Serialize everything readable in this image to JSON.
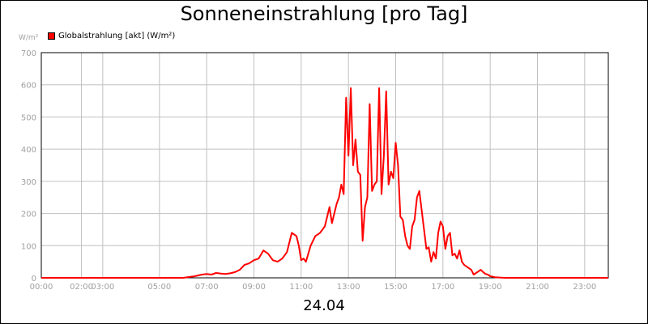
{
  "chart_data": {
    "type": "line",
    "title": "Sonneneinstrahlung [pro Tag]",
    "ylabel": "W/m²",
    "xlabel": "",
    "x_group_label": "24.04",
    "ylim": [
      0,
      700
    ],
    "xlim": [
      0,
      24
    ],
    "y_ticks": [
      0,
      100,
      200,
      300,
      400,
      500,
      600,
      700
    ],
    "x_ticks": [
      {
        "label": "00:00",
        "value": 0
      },
      {
        "label": "02:00",
        "value": 1.7
      },
      {
        "label": "03:00",
        "value": 2.6
      },
      {
        "label": "05:00",
        "value": 5
      },
      {
        "label": "07:00",
        "value": 7
      },
      {
        "label": "09:00",
        "value": 9
      },
      {
        "label": "11:00",
        "value": 11
      },
      {
        "label": "13:00",
        "value": 13
      },
      {
        "label": "15:00",
        "value": 15
      },
      {
        "label": "17:00",
        "value": 17
      },
      {
        "label": "19:00",
        "value": 19
      },
      {
        "label": "21:00",
        "value": 21
      },
      {
        "label": "23:00",
        "value": 23
      }
    ],
    "grid": true,
    "legend_position": "top-left",
    "colors": {
      "series": "#ff0000",
      "grid": "#c0c0c0",
      "axis_text": "#a0a0a0"
    },
    "series": [
      {
        "name": "Globalstrahlung [akt] (W/m²)",
        "x": [
          0,
          6.0,
          6.5,
          6.8,
          7.0,
          7.2,
          7.4,
          7.6,
          7.8,
          8.0,
          8.2,
          8.4,
          8.6,
          8.8,
          9.0,
          9.2,
          9.4,
          9.6,
          9.8,
          10.0,
          10.2,
          10.4,
          10.6,
          10.8,
          10.9,
          11.0,
          11.1,
          11.2,
          11.4,
          11.6,
          11.8,
          12.0,
          12.2,
          12.3,
          12.4,
          12.5,
          12.6,
          12.7,
          12.8,
          12.9,
          13.0,
          13.1,
          13.2,
          13.3,
          13.4,
          13.5,
          13.6,
          13.7,
          13.8,
          13.9,
          14.0,
          14.1,
          14.2,
          14.3,
          14.4,
          14.5,
          14.6,
          14.7,
          14.8,
          14.9,
          15.0,
          15.1,
          15.2,
          15.3,
          15.4,
          15.5,
          15.6,
          15.7,
          15.8,
          15.9,
          16.0,
          16.1,
          16.2,
          16.3,
          16.4,
          16.5,
          16.6,
          16.7,
          16.8,
          16.9,
          17.0,
          17.1,
          17.2,
          17.3,
          17.4,
          17.5,
          17.6,
          17.7,
          17.8,
          17.9,
          18.0,
          18.1,
          18.2,
          18.3,
          18.4,
          18.5,
          18.6,
          18.7,
          18.8,
          18.9,
          19.0,
          19.2,
          19.4,
          19.6,
          19.8,
          20.0,
          20.5,
          24.0
        ],
        "values": [
          0,
          0,
          5,
          10,
          12,
          10,
          15,
          13,
          12,
          14,
          18,
          25,
          40,
          45,
          55,
          60,
          85,
          75,
          55,
          50,
          60,
          80,
          140,
          130,
          100,
          55,
          60,
          50,
          100,
          130,
          140,
          160,
          220,
          170,
          200,
          230,
          250,
          290,
          260,
          560,
          380,
          590,
          350,
          430,
          330,
          320,
          115,
          220,
          250,
          540,
          270,
          290,
          300,
          590,
          260,
          380,
          580,
          290,
          330,
          310,
          420,
          350,
          190,
          180,
          130,
          100,
          90,
          160,
          180,
          250,
          270,
          210,
          150,
          90,
          95,
          50,
          80,
          60,
          140,
          175,
          160,
          90,
          130,
          140,
          70,
          75,
          60,
          85,
          50,
          40,
          35,
          30,
          25,
          10,
          15,
          20,
          25,
          18,
          12,
          10,
          5,
          2,
          1,
          0,
          0,
          0,
          0,
          0
        ]
      }
    ]
  }
}
